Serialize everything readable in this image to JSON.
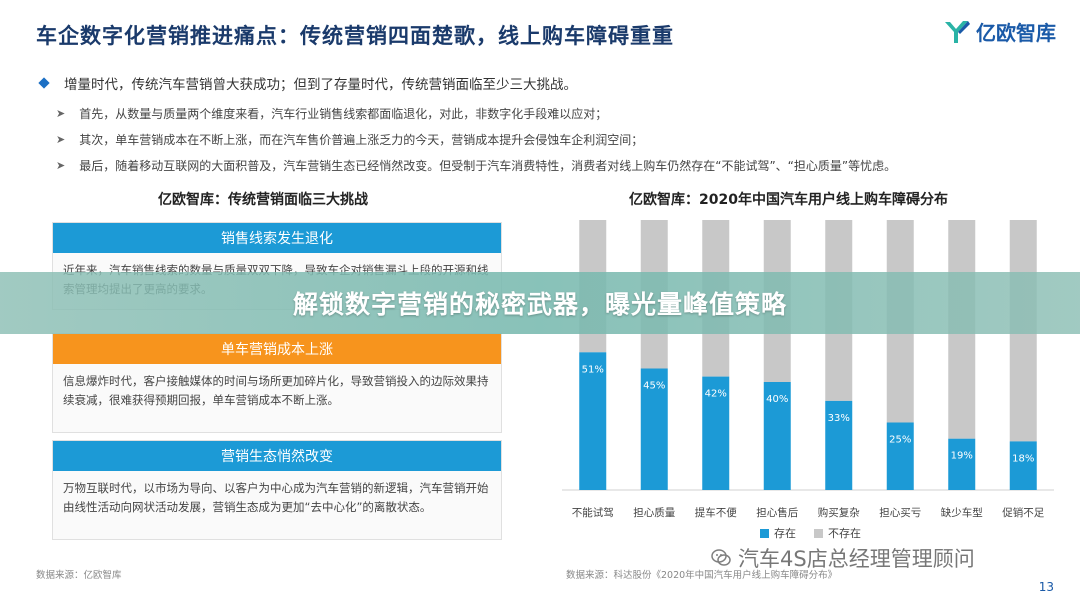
{
  "header": {
    "title": "车企数字化营销推进痛点：传统营销四面楚歌，线上购车障碍重重",
    "brand": "亿欧智库",
    "brand_icon": "yiou-logo-icon"
  },
  "bullets": {
    "main": "增量时代，传统汽车营销曾大获成功；但到了存量时代，传统营销面临至少三大挑战。",
    "items": [
      "首先，从数量与质量两个维度来看，汽车行业销售线索都面临退化，对此，非数字化手段难以应对；",
      "其次，单车营销成本在不断上涨，而在汽车售价普遍上涨乏力的今天，营销成本提升会侵蚀车企利润空间；",
      "最后，随着移动互联网的大面积普及，汽车营销生态已经悄然改变。但受制于汽车消费特性，消费者对线上购车仍然存在“不能试驾”、“担心质量”等忧虑。"
    ]
  },
  "left_panel": {
    "title": "亿欧智库：传统营销面临三大挑战",
    "cards": [
      {
        "head": "销售线索发生退化",
        "body": "近年来，汽车销售线索的数量与质量双双下降，导致车企对销售漏斗上段的开源和线索管理均提出了更高的要求。",
        "color": "#1c9ad6"
      },
      {
        "head": "单车营销成本上涨",
        "body": "信息爆炸时代，客户接触媒体的时间与场所更加碎片化，导致营销投入的边际效果持续衰减，很难获得预期回报，单车营销成本不断上涨。",
        "color": "#f7941d"
      },
      {
        "head": "营销生态悄然改变",
        "body": "万物互联时代，以市场为导向、以客户为中心成为汽车营销的新逻辑，汽车营销开始由线性活动向网状活动发展，营销生态成为更加“去中心化”的离散状态。",
        "color": "#1c9ad6"
      }
    ],
    "source": "数据来源：亿欧智库"
  },
  "overlay": {
    "text": "解锁数字营销的秘密武器，曝光量峰值策略"
  },
  "chart_data": {
    "type": "bar",
    "stacked": true,
    "title": "亿欧智库：2020年中国汽车用户线上购车障碍分布",
    "categories": [
      "不能试驾",
      "担心质量",
      "提车不便",
      "担心售后",
      "购买复杂",
      "担心买亏",
      "缺少车型",
      "促销不足"
    ],
    "series": [
      {
        "name": "存在",
        "values": [
          51,
          45,
          42,
          40,
          33,
          25,
          19,
          18
        ],
        "color": "#1c9ad6"
      },
      {
        "name": "不存在",
        "values": [
          49,
          55,
          58,
          60,
          67,
          75,
          81,
          82
        ],
        "color": "#c8c8c8"
      }
    ],
    "value_labels": [
      "51%",
      "45%",
      "42%",
      "40%",
      "33%",
      "25%",
      "19%",
      "18%"
    ],
    "ylim": [
      0,
      100
    ],
    "legend": "bottom"
  },
  "chart_source": "数据来源：科达股份《2020年中国汽车用户线上购车障碍分布》",
  "watermark": {
    "text": "汽车4S店总经理管理顾问",
    "icon": "wechat-icon"
  },
  "page_number": "13"
}
